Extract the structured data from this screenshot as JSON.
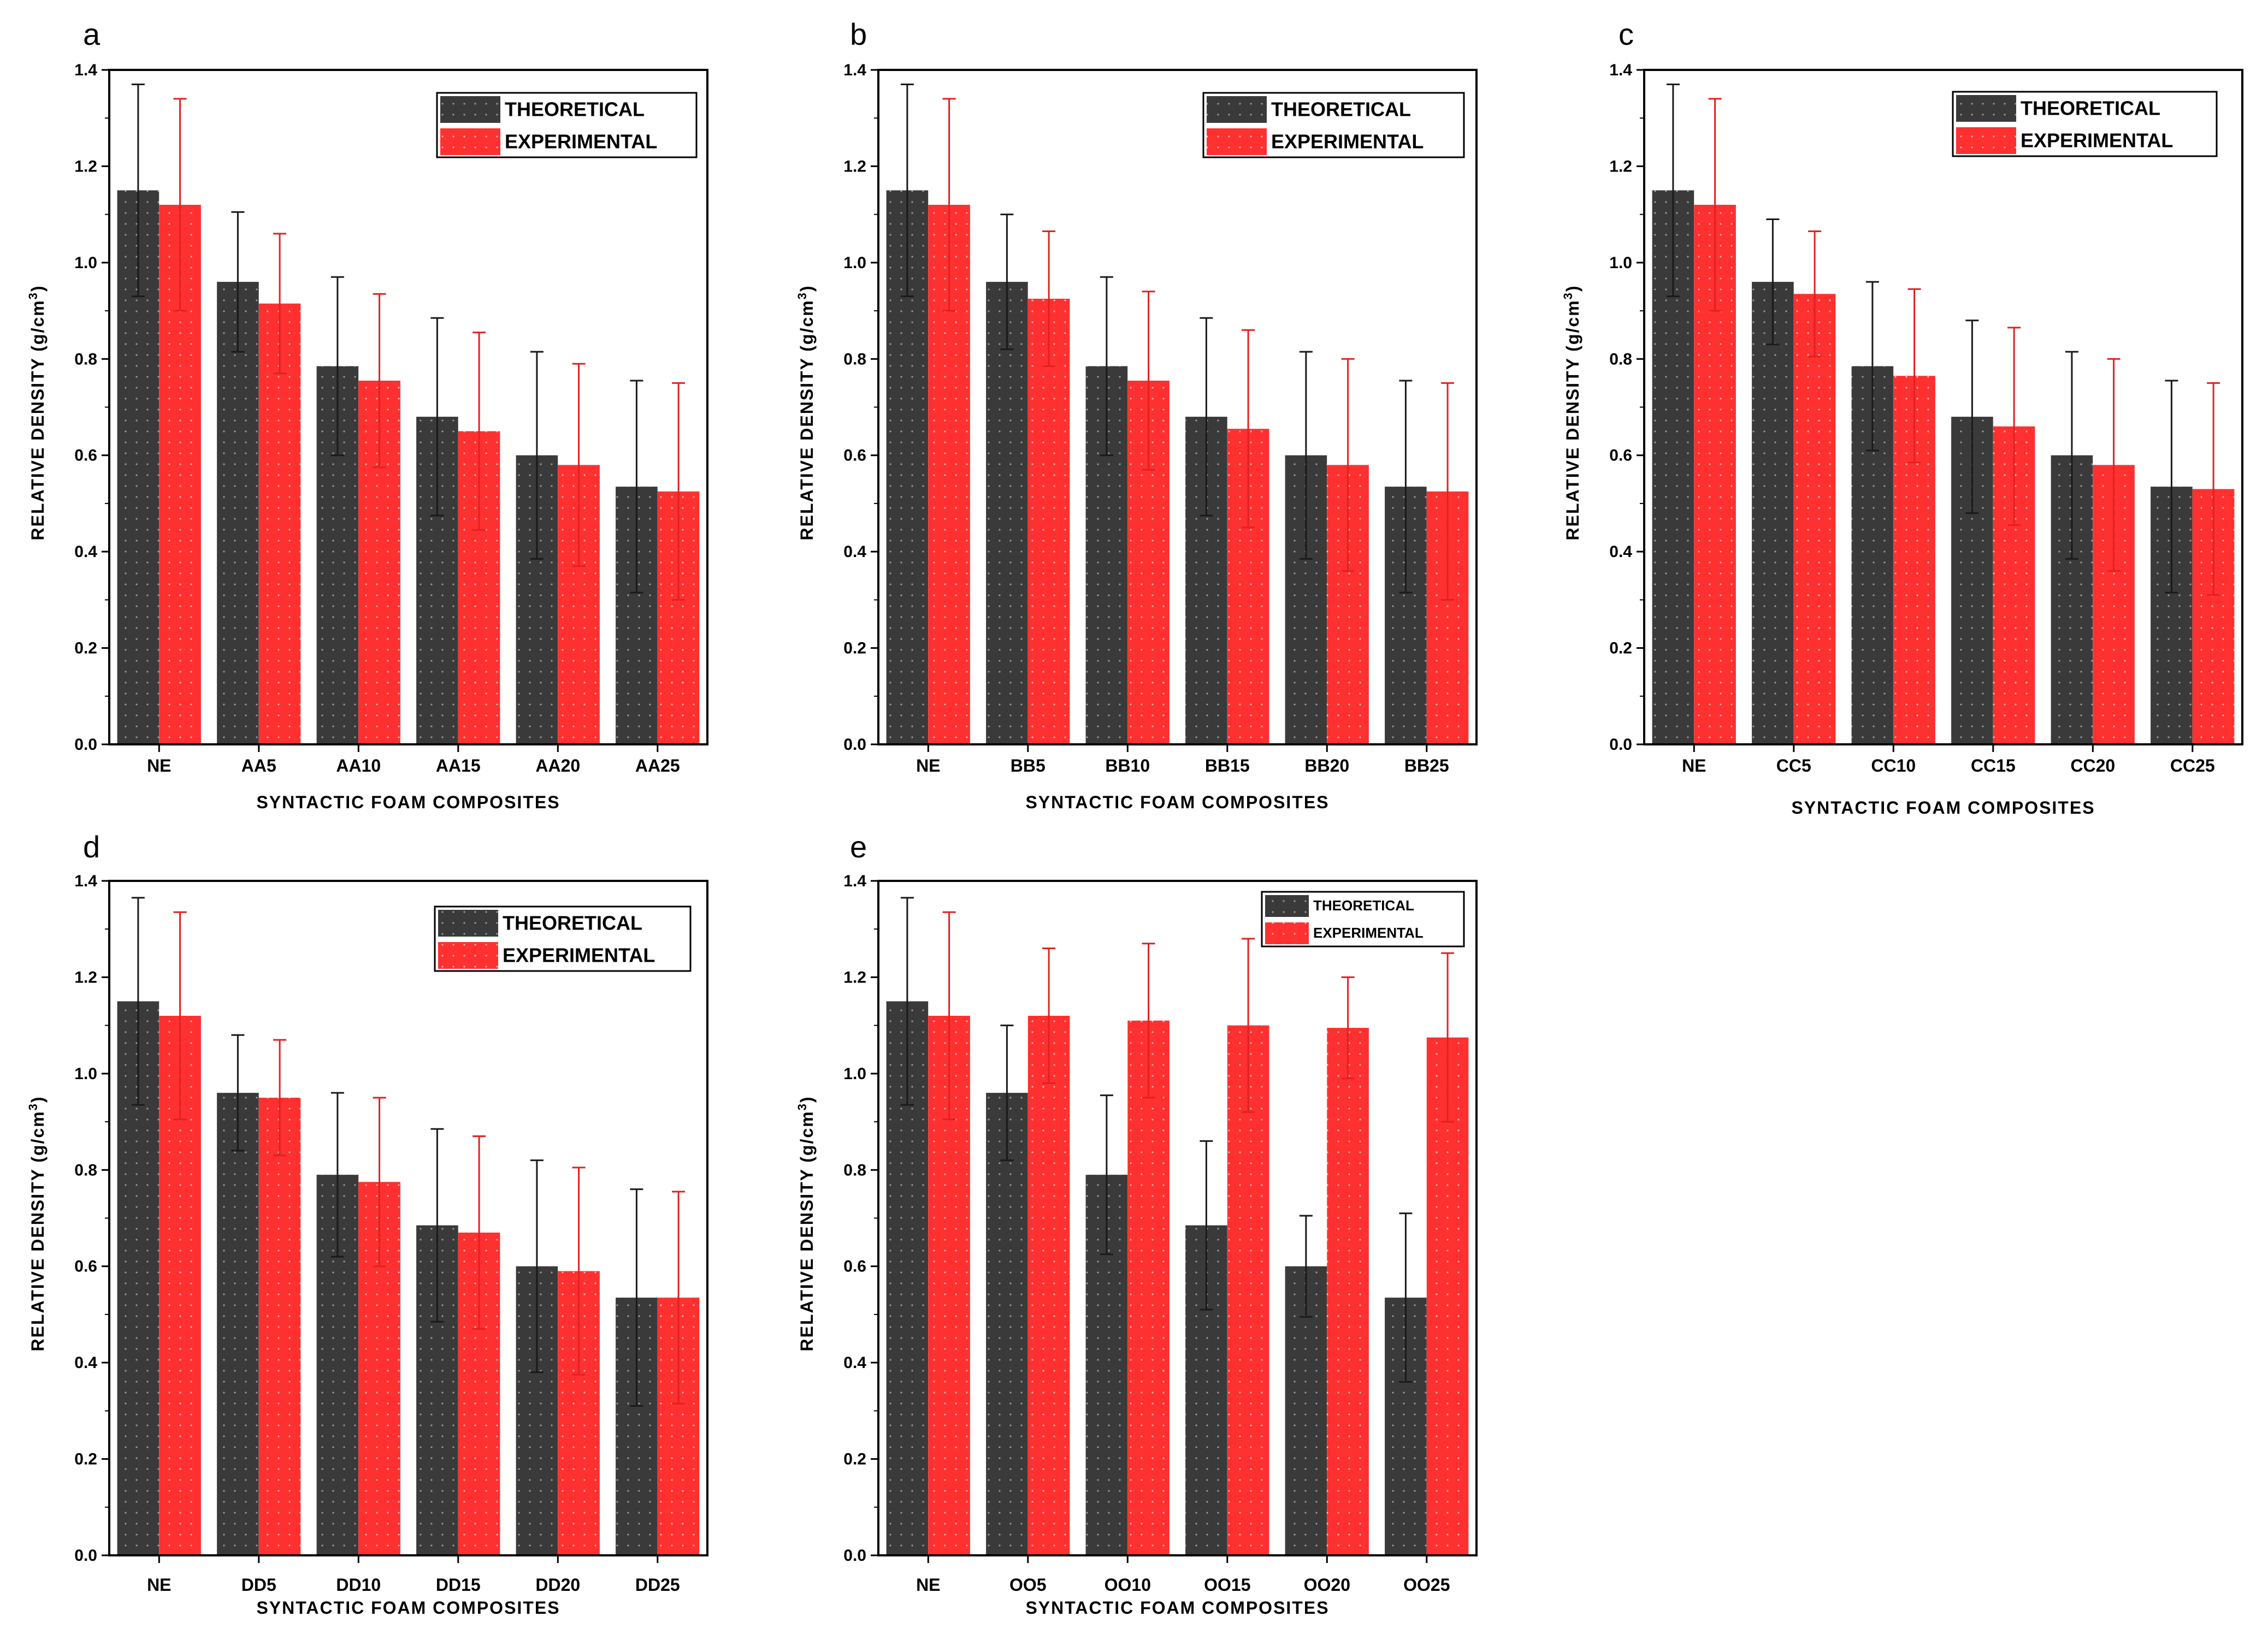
{
  "colors": {
    "theoretical": "#3a3a3a",
    "experimental": "#ff3030",
    "theoretical_error": "#1a1a1a",
    "experimental_error": "#e22020",
    "axis": "#000000"
  },
  "chart_data": [
    {
      "panel": "a",
      "type": "bar",
      "title": "",
      "xlabel": "SYNTACTIC FOAM COMPOSITES",
      "ylabel": "RELATIVE DENSITY (g/cm",
      "ylabel_sup": "3",
      "ylabel_end": ")",
      "ylim": [
        0.0,
        1.4
      ],
      "yticks": [
        "0.0",
        "0.2",
        "0.4",
        "0.6",
        "0.8",
        "1.0",
        "1.2",
        "1.4"
      ],
      "legend": [
        "THEORETICAL",
        "EXPERIMENTAL"
      ],
      "legend_position": "top-right",
      "categories": [
        "NE",
        "AA5",
        "AA10",
        "AA15",
        "AA20",
        "AA25"
      ],
      "series": [
        {
          "name": "THEORETICAL",
          "values": [
            1.15,
            0.96,
            0.785,
            0.68,
            0.6,
            0.535
          ],
          "errors": [
            0.22,
            0.145,
            0.185,
            0.205,
            0.215,
            0.22
          ]
        },
        {
          "name": "EXPERIMENTAL",
          "values": [
            1.12,
            0.915,
            0.755,
            0.65,
            0.58,
            0.525
          ],
          "errors": [
            0.22,
            0.145,
            0.18,
            0.205,
            0.21,
            0.225
          ]
        }
      ]
    },
    {
      "panel": "b",
      "type": "bar",
      "title": "",
      "xlabel": "SYNTACTIC FOAM COMPOSITES",
      "ylabel": "RELATIVE DENSITY (g/cm",
      "ylabel_sup": "3",
      "ylabel_end": ")",
      "ylim": [
        0.0,
        1.4
      ],
      "yticks": [
        "0.0",
        "0.2",
        "0.4",
        "0.6",
        "0.8",
        "1.0",
        "1.2",
        "1.4"
      ],
      "legend": [
        "THEORETICAL",
        "EXPERIMENTAL"
      ],
      "legend_position": "top-right",
      "categories": [
        "NE",
        "BB5",
        "BB10",
        "BB15",
        "BB20",
        "BB25"
      ],
      "series": [
        {
          "name": "THEORETICAL",
          "values": [
            1.15,
            0.96,
            0.785,
            0.68,
            0.6,
            0.535
          ],
          "errors": [
            0.22,
            0.14,
            0.185,
            0.205,
            0.215,
            0.22
          ]
        },
        {
          "name": "EXPERIMENTAL",
          "values": [
            1.12,
            0.925,
            0.755,
            0.655,
            0.58,
            0.525
          ],
          "errors": [
            0.22,
            0.14,
            0.185,
            0.205,
            0.22,
            0.225
          ]
        }
      ]
    },
    {
      "panel": "c",
      "type": "bar",
      "title": "",
      "xlabel": "SYNTACTIC FOAM COMPOSITES",
      "ylabel": "RELATIVE DENSITY (g/cm",
      "ylabel_sup": "3",
      "ylabel_end": ")",
      "ylim": [
        0.0,
        1.4
      ],
      "yticks": [
        "0.0",
        "0.2",
        "0.4",
        "0.6",
        "0.8",
        "1.0",
        "1.2",
        "1.4"
      ],
      "legend": [
        "THEORETICAL",
        "EXPERIMENTAL"
      ],
      "legend_position": "top-right",
      "categories": [
        "NE",
        "CC5",
        "CC10",
        "CC15",
        "CC20",
        "CC25"
      ],
      "series": [
        {
          "name": "THEORETICAL",
          "values": [
            1.15,
            0.96,
            0.785,
            0.68,
            0.6,
            0.535
          ],
          "errors": [
            0.22,
            0.13,
            0.175,
            0.2,
            0.215,
            0.22
          ]
        },
        {
          "name": "EXPERIMENTAL",
          "values": [
            1.12,
            0.935,
            0.765,
            0.66,
            0.58,
            0.53
          ],
          "errors": [
            0.22,
            0.13,
            0.18,
            0.205,
            0.22,
            0.22
          ]
        }
      ]
    },
    {
      "panel": "d",
      "type": "bar",
      "title": "",
      "xlabel": "SYNTACTIC FOAM COMPOSITES",
      "ylabel": "RELATIVE DENSITY (g/cm",
      "ylabel_sup": "3",
      "ylabel_end": ")",
      "ylim": [
        0.0,
        1.4
      ],
      "yticks": [
        "0.0",
        "0.2",
        "0.4",
        "0.6",
        "0.8",
        "1.0",
        "1.2",
        "1.4"
      ],
      "legend": [
        "THEORETICAL",
        "EXPERIMENTAL"
      ],
      "legend_position": "top-right",
      "categories": [
        "NE",
        "DD5",
        "DD10",
        "DD15",
        "DD20",
        "DD25"
      ],
      "series": [
        {
          "name": "THEORETICAL",
          "values": [
            1.15,
            0.96,
            0.79,
            0.685,
            0.6,
            0.535
          ],
          "errors": [
            0.215,
            0.12,
            0.17,
            0.2,
            0.22,
            0.225
          ]
        },
        {
          "name": "EXPERIMENTAL",
          "values": [
            1.12,
            0.95,
            0.775,
            0.67,
            0.59,
            0.535
          ],
          "errors": [
            0.215,
            0.12,
            0.175,
            0.2,
            0.215,
            0.22
          ]
        }
      ]
    },
    {
      "panel": "e",
      "type": "bar",
      "title": "",
      "xlabel": "SYNTACTIC FOAM COMPOSITES",
      "ylabel": "RELATIVE DENSITY (g/cm",
      "ylabel_sup": "3",
      "ylabel_end": ")",
      "ylim": [
        0.0,
        1.4
      ],
      "yticks": [
        "0.0",
        "0.2",
        "0.4",
        "0.6",
        "0.8",
        "1.0",
        "1.2",
        "1.4"
      ],
      "legend": [
        "THEORETICAL",
        "EXPERIMENTAL"
      ],
      "legend_position": "top-right",
      "categories": [
        "NE",
        "OO5",
        "OO10",
        "OO15",
        "OO20",
        "OO25"
      ],
      "series": [
        {
          "name": "THEORETICAL",
          "values": [
            1.15,
            0.96,
            0.79,
            0.685,
            0.6,
            0.535
          ],
          "errors": [
            0.215,
            0.14,
            0.165,
            0.175,
            0.105,
            0.175
          ]
        },
        {
          "name": "EXPERIMENTAL",
          "values": [
            1.12,
            1.12,
            1.11,
            1.1,
            1.095,
            1.075
          ],
          "errors": [
            0.215,
            0.14,
            0.16,
            0.18,
            0.105,
            0.175
          ]
        }
      ]
    }
  ]
}
